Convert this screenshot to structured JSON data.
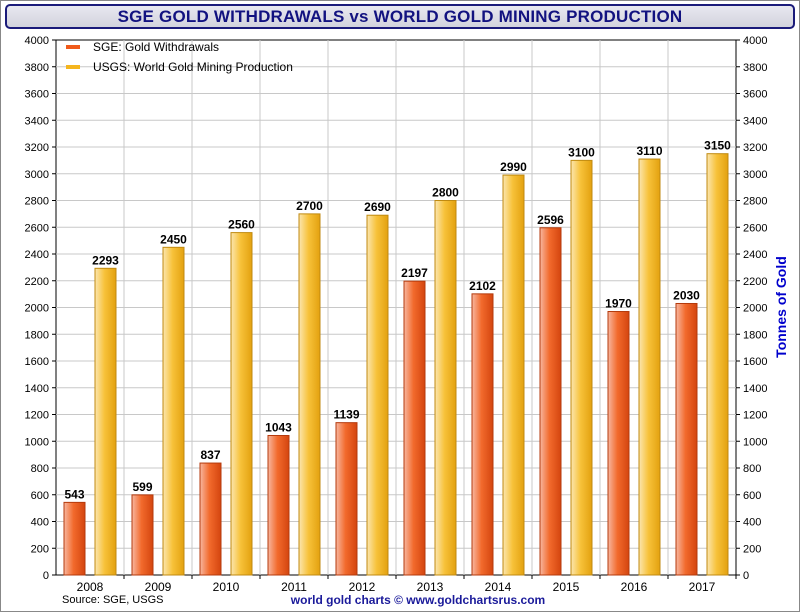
{
  "chart_data": {
    "type": "bar",
    "title": "SGE GOLD WITHDRAWALS vs WORLD GOLD MINING PRODUCTION",
    "categories": [
      "2008",
      "2009",
      "2010",
      "2011",
      "2012",
      "2013",
      "2014",
      "2015",
      "2016",
      "2017"
    ],
    "series": [
      {
        "name": "SGE: Gold Withdrawals",
        "color": "#f05a1a",
        "values": [
          543,
          599,
          837,
          1043,
          1139,
          2197,
          2102,
          2596,
          1970,
          2030
        ]
      },
      {
        "name": "USGS: World Gold Mining Production",
        "color": "#f5b51e",
        "values": [
          2293,
          2450,
          2560,
          2700,
          2690,
          2800,
          2990,
          3100,
          3110,
          3150
        ]
      }
    ],
    "ylim": [
      0,
      4000
    ],
    "ytick_step": 200,
    "ylabel_right": "Tonnes of Gold",
    "xlabel": "",
    "grid": true,
    "legend_position": "top-left",
    "source_note": "Source: SGE, USGS",
    "credit": "world gold charts © www.goldchartsrus.com"
  }
}
